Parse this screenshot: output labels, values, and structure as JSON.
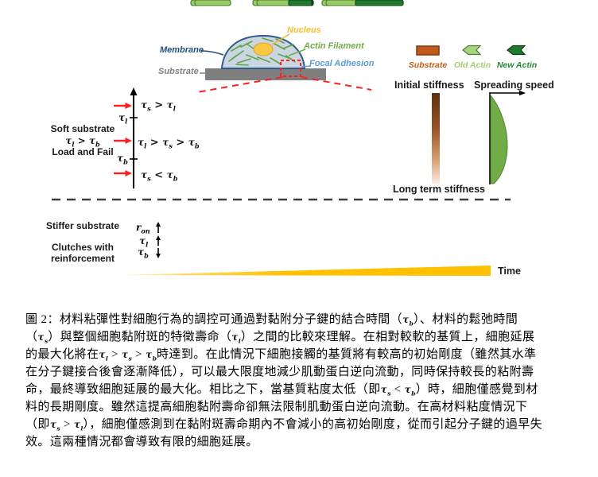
{
  "figure": {
    "cell": {
      "membrane": "Membrane",
      "nucleus": "Nucleus",
      "actin_filament": "Actin Filament",
      "focal_adhesion": "Focal Adhesion",
      "substrate": "Substrate"
    },
    "legend": {
      "substrate": "Substrate",
      "old_actin": "Old Actin",
      "new_actin": "New Actin"
    },
    "right_panel": {
      "initial_stiffness": "Initial stiffness",
      "long_term_stiffness": "Long term stiffness",
      "spreading_speed": "Spreading speed"
    },
    "left_axis": {
      "soft_substrate": "Soft substrate",
      "condition": "τ_l > τ_b",
      "load_and_fail": "Load and Fail",
      "row_condition_1": "τ_s > τ_l",
      "row_condition_2": "τ_l > τ_s > τ_b",
      "row_condition_3": "τ_s < τ_b",
      "tick_top": "τ_l",
      "tick_bottom": "τ_b"
    },
    "bottom_section": {
      "stiffer_substrate": "Stiffer substrate",
      "clutches_line1": "Clutches with",
      "clutches_line2": "reinforcement",
      "r_on": "r_on",
      "tau_l": "τ_l",
      "tau_b": "τ_b",
      "time": "Time"
    },
    "panels": {
      "soft_rows": [
        [
          {
            "substrate": "dark",
            "actin": "old",
            "clutch": "engaged"
          },
          {
            "substrate": "dark",
            "actin": "old+new",
            "clutch": "released"
          }
        ],
        [
          {
            "substrate": "dark",
            "actin": "old",
            "clutch": "engaged"
          },
          {
            "substrate": "orange",
            "actin": "old+new",
            "clutch": "engaged"
          },
          {
            "substrate": "soft",
            "actin": "old+new",
            "clutch": "released"
          }
        ],
        [
          {
            "substrate": "soft",
            "actin": "old",
            "clutch": "engaged"
          },
          {
            "substrate": "soft",
            "actin": "old+new",
            "clutch": "engaged"
          },
          {
            "substrate": "soft",
            "actin": "old+new",
            "clutch": "released"
          }
        ]
      ],
      "stiff_row": [
        {
          "substrate": "dark",
          "actin": "old",
          "clutch": "reinforced"
        },
        {
          "substrate": "dark",
          "actin": "old+new",
          "clutch": "reinforced"
        },
        {
          "substrate": "dark",
          "actin": "old+new",
          "clutch": "reinforced"
        }
      ]
    }
  },
  "colors": {
    "old_actin": "#97cc64",
    "old_actin_stroke": "#4f7a2f",
    "old_chevron": "#2f5b1f",
    "new_actin": "#1e7a2e",
    "new_actin_stroke": "#143e14",
    "new_chevron": "#0c130c",
    "substrate_dark": "#6e3b12",
    "substrate_orange": "#c55a11",
    "substrate_soft": "#fae3d3",
    "clutch_engaged": "#2e75b6",
    "clutch_light": "#9dc3e6",
    "clutch_reinforced": "#1f3864",
    "clutch_released": "#8faadc",
    "highlight_red": "#ff1f1f",
    "membrane_label": "#1f4e79",
    "nucleus_label": "#fbbf2d",
    "actin_label": "#70ad47",
    "focal_label": "#5b9bd5",
    "substrate_label": "#7f7f7f",
    "time_gold": "#ffc000",
    "spreading_green": "#70ad47"
  },
  "caption": {
    "lines": [
      "圖 2：材料粘彈性對細胞行為的調控可通過對黏附分子鍵的結合時間（τ_b）、材料的鬆弛時間",
      "（τ_s）與整個細胞黏附斑的特徵壽命（τ_l）之間的比較來理解。在相對較軟的基質上，細胞延展",
      "的最大化將在τ_l > τ_s > τ_b時達到。在此情況下細胞接觸的基質將有較高的初始剛度（雖然其水準",
      "在分子鍵接合後會逐漸降低），可以最大限度地減少肌動蛋白逆向流動，同時保持較長的粘附壽",
      "命，最終導致細胞延展的最大化。相比之下，當基質粘度太低（即τ_s < τ_b）時，細胞僅感覺到材",
      "料的長期剛度。雖然這提高細胞黏附壽命卻無法限制肌動蛋白逆向流動。在高材料粘度情況下",
      "（即τ_s > τ_l），細胞僅感測到在黏附斑壽命期內不會減小的高初始剛度，從而引起分子鍵的過早失",
      "效。這兩種情況都會導致有限的細胞延展。"
    ]
  }
}
